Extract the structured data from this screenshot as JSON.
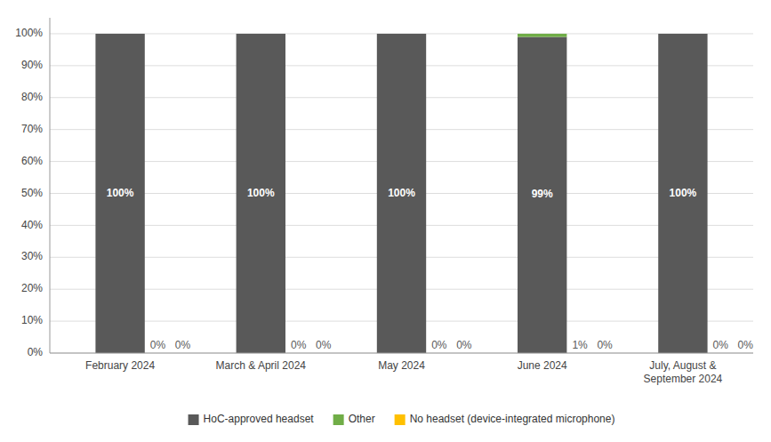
{
  "chart_data": {
    "type": "bar",
    "stacked": true,
    "categories": [
      "February 2024",
      "March & April 2024",
      "May 2024",
      "June 2024",
      "July, August &\nSeptember 2024"
    ],
    "series": [
      {
        "name": "HoC-approved headset",
        "color": "#595959",
        "values": [
          100,
          100,
          100,
          99,
          100
        ],
        "value_labels": [
          "100%",
          "100%",
          "100%",
          "99%",
          "100%"
        ]
      },
      {
        "name": "Other",
        "color": "#70ad47",
        "values": [
          0,
          0,
          0,
          1,
          0
        ],
        "value_labels": [
          "0%",
          "0%",
          "0%",
          "1%",
          "0%"
        ]
      },
      {
        "name": "No headset (device-integrated microphone)",
        "color": "#ffc000",
        "values": [
          0,
          0,
          0,
          0,
          0
        ],
        "value_labels": [
          "0%",
          "0%",
          "0%",
          "0%",
          "0%"
        ]
      }
    ],
    "ylim": [
      0,
      105
    ],
    "yticks": [
      {
        "value": 0,
        "label": "0%"
      },
      {
        "value": 10,
        "label": "10%"
      },
      {
        "value": 20,
        "label": "20%"
      },
      {
        "value": 30,
        "label": "30%"
      },
      {
        "value": 40,
        "label": "40%"
      },
      {
        "value": 50,
        "label": "50%"
      },
      {
        "value": 60,
        "label": "60%"
      },
      {
        "value": 70,
        "label": "70%"
      },
      {
        "value": 80,
        "label": "80%"
      },
      {
        "value": 90,
        "label": "90%"
      },
      {
        "value": 100,
        "label": "100%"
      }
    ],
    "grid": true,
    "legend": "bottom",
    "data_labels": true
  }
}
